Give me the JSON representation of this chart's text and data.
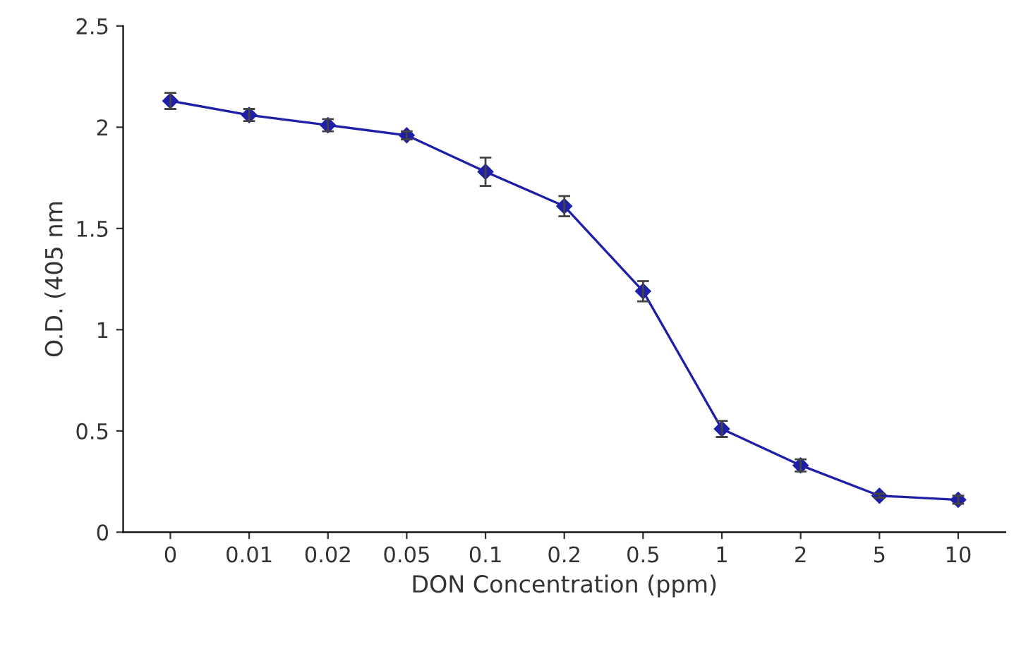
{
  "chart_data": {
    "type": "line",
    "xlabel": "DON Concentration (ppm)",
    "ylabel": "O.D. (405 nm",
    "categories": [
      "0",
      "0.01",
      "0.02",
      "0.05",
      "0.1",
      "0.2",
      "0.5",
      "1",
      "2",
      "5",
      "10"
    ],
    "series": [
      {
        "color": "#1f1fa8",
        "values": [
          2.13,
          2.06,
          2.01,
          1.96,
          1.78,
          1.61,
          1.19,
          0.51,
          0.33,
          0.18,
          0.16
        ],
        "errors": [
          0.04,
          0.03,
          0.03,
          0.02,
          0.07,
          0.05,
          0.05,
          0.04,
          0.03,
          0.01,
          0.02
        ]
      }
    ],
    "ylim": [
      0,
      2.5
    ],
    "yticks": [
      0,
      0.5,
      1,
      1.5,
      2,
      2.5
    ],
    "grid": false,
    "legend": false,
    "marker": "diamond",
    "line_style": "solid"
  }
}
